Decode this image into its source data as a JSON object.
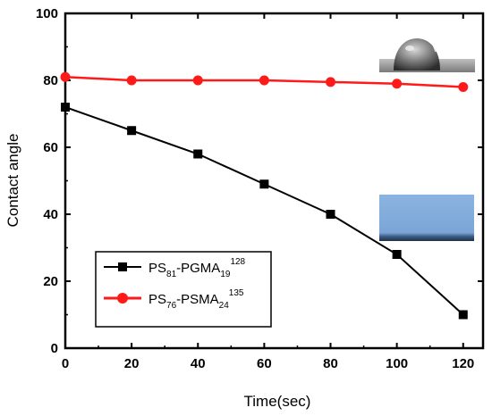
{
  "chart_data": {
    "type": "line",
    "title": "",
    "xlabel": "Time(sec)",
    "ylabel": "Contact angle",
    "xlim": [
      0,
      126
    ],
    "ylim": [
      0,
      100
    ],
    "xticks": [
      0,
      20,
      40,
      60,
      80,
      100,
      120
    ],
    "yticks": [
      0,
      20,
      40,
      60,
      80,
      100
    ],
    "grid": false,
    "legend_position": "lower-left",
    "series": [
      {
        "name": "PS81-PGMA19 128",
        "label_parts": {
          "a": "PS",
          "a_sub": "81",
          "b": "-PGMA",
          "b_sub": "19",
          "sup": "128"
        },
        "color": "#000000",
        "marker": "square",
        "x": [
          0,
          20,
          40,
          60,
          80,
          100,
          120
        ],
        "y": [
          72,
          65,
          58,
          49,
          40,
          28,
          10
        ]
      },
      {
        "name": "PS76-PSMA24 135",
        "label_parts": {
          "a": "PS",
          "a_sub": "76",
          "b": "-PSMA",
          "b_sub": "24",
          "sup": "135"
        },
        "color": "#ff1a1a",
        "marker": "circle",
        "x": [
          0,
          20,
          40,
          60,
          80,
          100,
          120
        ],
        "y": [
          81,
          80,
          80,
          80,
          79.5,
          79,
          78
        ]
      }
    ]
  }
}
